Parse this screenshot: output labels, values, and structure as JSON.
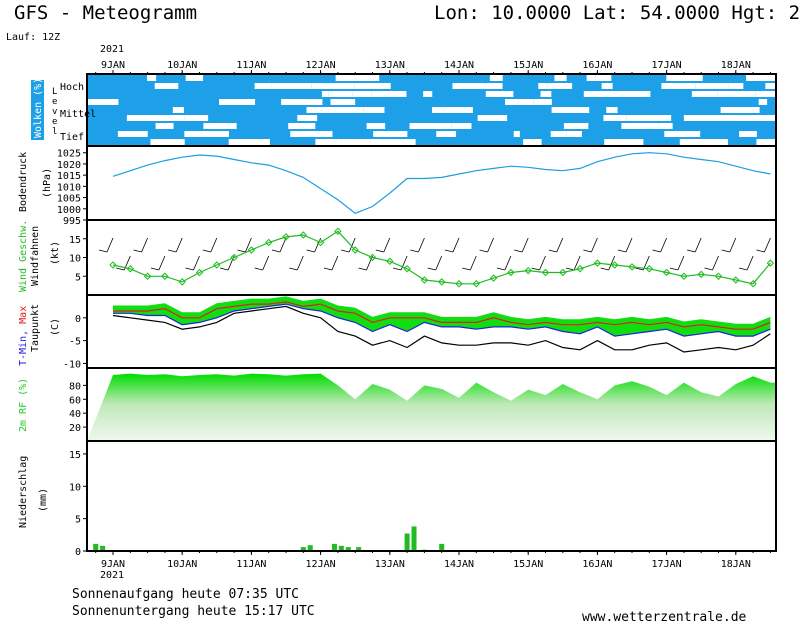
{
  "header": {
    "title": "GFS - Meteogramm",
    "location": "Lon: 10.0000 Lat: 54.0000 Hgt: 2",
    "run": "Lauf: 12Z",
    "year": "2021"
  },
  "footer": {
    "sunrise": "Sonnenaufgang heute 07:35 UTC",
    "sunset": "Sonnenuntergang heute 15:17 UTC",
    "website": "www.wetterzentrale.de"
  },
  "colors": {
    "clouds_sky": "#1ea0e8",
    "pressure": "#1e9ee0",
    "wind_speed": "#22bb22",
    "tmin": "#2020dd",
    "tmax": "#dd2020",
    "rh": "#22cc22",
    "precip": "#22bb22"
  },
  "chart_data": [
    {
      "type": "heatmap",
      "panel": "clouds",
      "ylabel": "Wolken (%)",
      "level_label": "Level",
      "levels": [
        "Hoch",
        "Mittel",
        "Tief"
      ],
      "x_ticks": [
        "9JAN",
        "10JAN",
        "11JAN",
        "12JAN",
        "13JAN",
        "14JAN",
        "15JAN",
        "16JAN",
        "17JAN",
        "18JAN"
      ]
    },
    {
      "type": "line",
      "panel": "pressure",
      "ylabel": "Bodendruck",
      "unit": "(hPa)",
      "ylim": [
        995,
        1028
      ],
      "yticks": [
        995,
        1000,
        1005,
        1010,
        1015,
        1020,
        1025
      ],
      "x": [
        0,
        0.25,
        0.5,
        0.75,
        1,
        1.25,
        1.5,
        1.75,
        2,
        2.25,
        2.5,
        2.75,
        3,
        3.25,
        3.5,
        3.75,
        4,
        4.25,
        4.5,
        4.75,
        5,
        5.25,
        5.5,
        5.75,
        6,
        6.25,
        6.5,
        6.75,
        7,
        7.25,
        7.5,
        7.75,
        8,
        8.25,
        8.5,
        8.75,
        9,
        9.25,
        9.5
      ],
      "values": [
        1014.5,
        1017,
        1019.5,
        1021.5,
        1023,
        1024,
        1023.5,
        1022,
        1020.5,
        1019.5,
        1017,
        1014,
        1009,
        1004,
        998,
        1001,
        1007,
        1013.5,
        1013.5,
        1014,
        1015.5,
        1017,
        1018,
        1019,
        1018.5,
        1017.5,
        1017,
        1018,
        1021,
        1023,
        1024.5,
        1025,
        1024.5,
        1023,
        1022,
        1021,
        1019,
        1017,
        1015.5
      ]
    },
    {
      "type": "line",
      "panel": "wind",
      "ylabel": "Wind Geschw.",
      "ylabel2": "Windfahnen",
      "unit": "(kt)",
      "ylim": [
        0,
        20
      ],
      "yticks": [
        5,
        10,
        15
      ],
      "x": [
        0,
        0.25,
        0.5,
        0.75,
        1,
        1.25,
        1.5,
        1.75,
        2,
        2.25,
        2.5,
        2.75,
        3,
        3.25,
        3.5,
        3.75,
        4,
        4.25,
        4.5,
        4.75,
        5,
        5.25,
        5.5,
        5.75,
        6,
        6.25,
        6.5,
        6.75,
        7,
        7.25,
        7.5,
        7.75,
        8,
        8.25,
        8.5,
        8.75,
        9,
        9.25,
        9.5
      ],
      "values": [
        8,
        7,
        5,
        5,
        3.5,
        6,
        8,
        10,
        12,
        14,
        15.5,
        16,
        14,
        17,
        12,
        10,
        9,
        7,
        4,
        3.5,
        3,
        3,
        4.5,
        6,
        6.5,
        6,
        6,
        7,
        8.5,
        8,
        7.5,
        7,
        6,
        5,
        5.5,
        5,
        4,
        3,
        8.5
      ],
      "barbs": true
    },
    {
      "type": "line",
      "panel": "temperature",
      "ylabel": "T-Min, Max",
      "ylabel2": "Taupunkt",
      "unit": "(C)",
      "ylim": [
        -11,
        5
      ],
      "yticks": [
        -10,
        -5,
        0
      ],
      "x": [
        0,
        0.25,
        0.5,
        0.75,
        1,
        1.25,
        1.5,
        1.75,
        2,
        2.25,
        2.5,
        2.75,
        3,
        3.25,
        3.5,
        3.75,
        4,
        4.25,
        4.5,
        4.75,
        5,
        5.25,
        5.5,
        5.75,
        6,
        6.25,
        6.5,
        6.75,
        7,
        7.25,
        7.5,
        7.75,
        8,
        8.25,
        8.5,
        8.75,
        9,
        9.25,
        9.5
      ],
      "series": [
        {
          "name": "T-Min",
          "values": [
            1,
            1,
            0.5,
            0.5,
            -1.5,
            -1,
            0,
            1.5,
            2,
            2.5,
            3,
            2,
            1.5,
            0,
            -1,
            -3,
            -1.5,
            -3,
            -1,
            -2,
            -2,
            -2.5,
            -2,
            -2,
            -2.5,
            -2,
            -3,
            -3.5,
            -2,
            -4,
            -3.5,
            -3,
            -2.5,
            -4,
            -3.5,
            -3,
            -4,
            -4,
            -2.5
          ]
        },
        {
          "name": "T-Max",
          "values": [
            1.5,
            1.5,
            1.5,
            2,
            0,
            0,
            2,
            2.5,
            3,
            3,
            3.5,
            2.5,
            3,
            1.5,
            1,
            -1,
            0,
            0,
            0,
            -1,
            -1,
            -1,
            0,
            -1,
            -1.5,
            -1,
            -1.5,
            -1.5,
            -1,
            -1.5,
            -1,
            -1.5,
            -1,
            -2,
            -1.5,
            -2,
            -2.5,
            -2.5,
            -1
          ]
        },
        {
          "name": "Taupunkt",
          "values": [
            0.5,
            0,
            -0.5,
            -1,
            -2.5,
            -2,
            -1,
            1,
            1.5,
            2,
            2.5,
            1,
            0,
            -3,
            -4,
            -6,
            -5,
            -6.5,
            -4,
            -5.5,
            -6,
            -6,
            -5.5,
            -5.5,
            -6,
            -5,
            -6.5,
            -7,
            -5,
            -7,
            -7,
            -6,
            -5.5,
            -7.5,
            -7,
            -6.5,
            -7,
            -6,
            -3.5
          ]
        }
      ]
    },
    {
      "type": "area",
      "panel": "humidity",
      "ylabel": "2m RF (%)",
      "ylim": [
        0,
        105
      ],
      "yticks": [
        20,
        40,
        60,
        80
      ],
      "x": [
        0,
        0.25,
        0.5,
        0.75,
        1,
        1.25,
        1.5,
        1.75,
        2,
        2.25,
        2.5,
        2.75,
        3,
        3.25,
        3.5,
        3.75,
        4,
        4.25,
        4.5,
        4.75,
        5,
        5.25,
        5.5,
        5.75,
        6,
        6.25,
        6.5,
        6.75,
        7,
        7.25,
        7.5,
        7.75,
        8,
        8.25,
        8.5,
        8.75,
        9,
        9.25,
        9.5
      ],
      "values": [
        95,
        97,
        95,
        96,
        93,
        95,
        96,
        94,
        97,
        96,
        94,
        96,
        97,
        80,
        60,
        82,
        74,
        58,
        80,
        75,
        62,
        84,
        70,
        58,
        74,
        66,
        82,
        70,
        60,
        80,
        86,
        78,
        66,
        84,
        70,
        64,
        82,
        93,
        84
      ]
    },
    {
      "type": "bar",
      "panel": "precipitation",
      "ylabel": "Niederschlag",
      "unit": "(mm)",
      "ylim": [
        0,
        17
      ],
      "yticks": [
        0,
        5,
        10,
        15
      ],
      "x": [
        -0.25,
        -0.15,
        2.75,
        2.85,
        3.2,
        3.3,
        3.4,
        3.55,
        4.25,
        4.35,
        4.5,
        4.75
      ],
      "values": [
        1.1,
        0.8,
        0.6,
        0.9,
        1.1,
        0.8,
        0.6,
        0.6,
        2.7,
        3.8,
        0.2,
        1.1
      ]
    }
  ]
}
